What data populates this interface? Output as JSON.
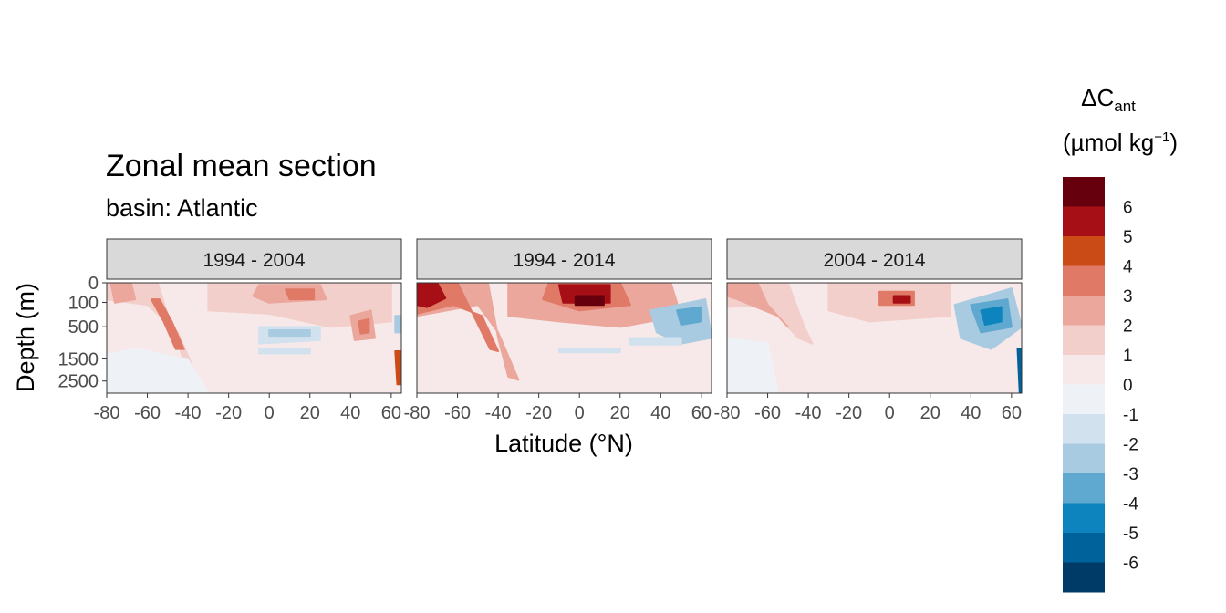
{
  "chart_data": {
    "type": "heatmap",
    "title": "Zonal mean section",
    "subtitle": "basin: Atlantic",
    "xlabel": "Latitude (°N)",
    "ylabel": "Depth (m)",
    "xlim": [
      -80,
      65
    ],
    "x_ticks": [
      "-80",
      "-60",
      "-40",
      "-20",
      "0",
      "20",
      "40",
      "60"
    ],
    "y_ticks": [
      "0",
      "100",
      "500",
      "1500",
      "2500"
    ],
    "y_tick_values": [
      0,
      100,
      500,
      1500,
      2500
    ],
    "y_scale": "reversed sqrt-like",
    "grid": false,
    "panels": [
      {
        "label": "1994 - 2004",
        "shape": "p1"
      },
      {
        "label": "1994 - 2014",
        "shape": "p2"
      },
      {
        "label": "2004 - 2014",
        "shape": "p3"
      }
    ],
    "legend": {
      "title_main": "ΔC",
      "title_sub": "ant",
      "unit_main": "(µmol kg",
      "unit_sup": "−1",
      "unit_end": ")",
      "placement": "right",
      "tick_labels": [
        "6",
        "5",
        "4",
        "3",
        "2",
        "1",
        "0",
        "-1",
        "-2",
        "-3",
        "-4",
        "-5",
        "-6"
      ],
      "colors": [
        "#67000d",
        "#a50f15",
        "#cb4b16",
        "#e07a66",
        "#eba79c",
        "#f3cfcc",
        "#f7e9e9",
        "#eef2f6",
        "#d2e1ee",
        "#a9cbe1",
        "#5fa8cf",
        "#0d84bd",
        "#00629a",
        "#003a66"
      ]
    }
  }
}
